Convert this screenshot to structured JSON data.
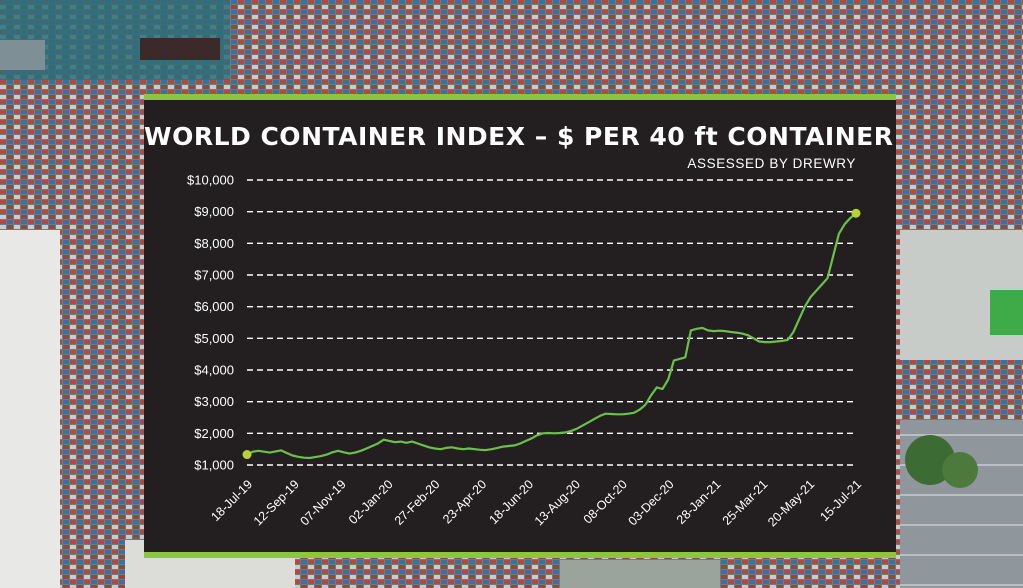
{
  "chart_data": {
    "type": "line",
    "title": "WORLD CONTAINER INDEX – $ PER 40 ft CONTAINER",
    "subtitle": "ASSESSED BY DREWRY",
    "xlabel": "",
    "ylabel": "",
    "ylim": [
      1000,
      10000
    ],
    "y_ticks": [
      "$1,000",
      "$2,000",
      "$3,000",
      "$4,000",
      "$5,000",
      "$6,000",
      "$7,000",
      "$8,000",
      "$9,000",
      "$10,000"
    ],
    "x_ticks": [
      "18-Jul-19",
      "12-Sep-19",
      "07-Nov-19",
      "02-Jan-20",
      "27-Feb-20",
      "23-Apr-20",
      "18-Jun-20",
      "13-Aug-20",
      "08-Oct-20",
      "03-Dec-20",
      "28-Jan-21",
      "25-Mar-21",
      "20-May-21",
      "15-Jul-21"
    ],
    "grid": "horizontal dashed",
    "line_color": "#6cc04a",
    "end_marker_color": "#b5d334",
    "series": [
      {
        "values": [
          1330,
          1420,
          1450,
          1420,
          1390,
          1430,
          1460,
          1380,
          1300,
          1260,
          1230,
          1220,
          1250,
          1280,
          1330,
          1400,
          1450,
          1400,
          1360,
          1390,
          1450,
          1520,
          1600,
          1680,
          1800,
          1760,
          1720,
          1740,
          1700,
          1740,
          1680,
          1620,
          1560,
          1520,
          1500,
          1540,
          1560,
          1520,
          1500,
          1520,
          1500,
          1480,
          1470,
          1500,
          1540,
          1580,
          1600,
          1620,
          1680,
          1760,
          1840,
          1940,
          2000,
          2010,
          2000,
          2010,
          2030,
          2080,
          2150,
          2250,
          2350,
          2450,
          2550,
          2620,
          2610,
          2600,
          2600,
          2620,
          2650,
          2750,
          2900,
          3200,
          3450,
          3400,
          3700,
          4300,
          4350,
          4400,
          5250,
          5300,
          5330,
          5250,
          5230,
          5240,
          5230,
          5200,
          5180,
          5150,
          5100,
          5000,
          4900,
          4880,
          4880,
          4900,
          4920,
          4950,
          5200,
          5600,
          6000,
          6300,
          6500,
          6700,
          6900,
          7600,
          8300,
          8600,
          8800,
          8950
        ]
      }
    ]
  }
}
